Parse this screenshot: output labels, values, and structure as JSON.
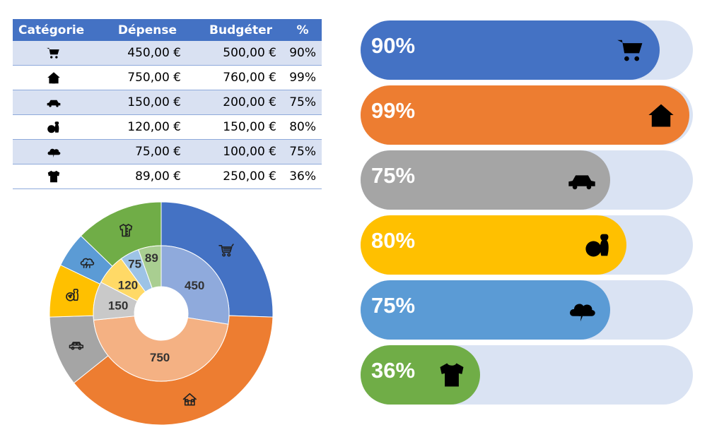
{
  "table": {
    "headers": [
      "Catégorie",
      "Dépense",
      "Budgéter",
      "%"
    ],
    "rows": [
      {
        "icon": "shopping-cart-icon",
        "depense": "450,00 €",
        "budget": "500,00 €",
        "pct": "90%"
      },
      {
        "icon": "house-icon",
        "depense": "750,00 €",
        "budget": "760,00 €",
        "pct": "99%"
      },
      {
        "icon": "car-icon",
        "depense": "150,00 €",
        "budget": "200,00 €",
        "pct": "75%"
      },
      {
        "icon": "bowling-icon",
        "depense": "120,00 €",
        "budget": "150,00 €",
        "pct": "80%"
      },
      {
        "icon": "storm-cloud-icon",
        "depense": "75,00 €",
        "budget": "100,00 €",
        "pct": "75%"
      },
      {
        "icon": "shirt-icon",
        "depense": "89,00 €",
        "budget": "250,00 €",
        "pct": "36%"
      }
    ]
  },
  "colors": {
    "header": "#4472c4",
    "categories": [
      "#4472c4",
      "#ed7d31",
      "#a5a5a5",
      "#ffc000",
      "#5b9bd5",
      "#70ad47"
    ],
    "track": "#dae3f3"
  },
  "chart_data": [
    {
      "type": "pie",
      "subtype": "double-donut",
      "categories": [
        "shopping-cart-icon",
        "house-icon",
        "car-icon",
        "bowling-icon",
        "storm-cloud-icon",
        "shirt-icon"
      ],
      "series": [
        {
          "values": [
            500,
            760,
            200,
            150,
            100,
            250
          ]
        },
        {
          "values": [
            450,
            750,
            150,
            120,
            75,
            89
          ]
        }
      ],
      "data_labels": [
        "450",
        "750",
        "150",
        "120",
        "75",
        "89"
      ]
    },
    {
      "type": "bar",
      "orientation": "horizontal",
      "categories": [
        "shopping-cart-icon",
        "house-icon",
        "car-icon",
        "bowling-icon",
        "storm-cloud-icon",
        "shirt-icon"
      ],
      "values": [
        90,
        99,
        75,
        80,
        75,
        36
      ],
      "labels": [
        "90%",
        "99%",
        "75%",
        "80%",
        "75%",
        "36%"
      ],
      "xlim": [
        0,
        100
      ]
    }
  ]
}
